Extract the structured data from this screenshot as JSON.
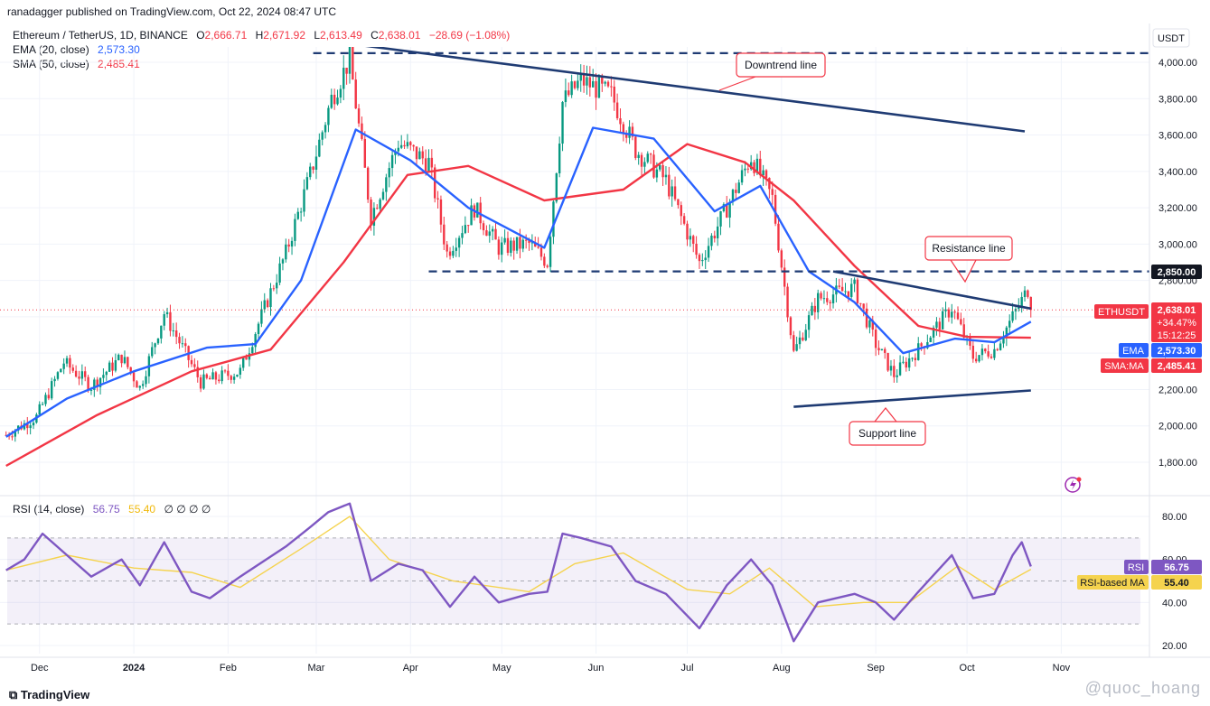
{
  "header": {
    "published": "ranadagger published on TradingView.com, Oct 22, 2024 08:47 UTC",
    "symbol": "Ethereum / TetherUS, 1D, BINANCE",
    "ohlc": {
      "o": "2,666.71",
      "h": "2,671.92",
      "l": "2,613.49",
      "c": "2,638.01",
      "chg": "−28.69 (−1.08%)"
    },
    "ema_label": "EMA (20, close)",
    "ema_value": "2,573.30",
    "sma_label": "SMA (50, close)",
    "sma_value": "2,485.41",
    "currency": "USDT"
  },
  "price_panel": {
    "labels": {
      "last_symbol": "ETHUSDT",
      "last_price": "2,638.01",
      "last_change": "+34.47%",
      "countdown": "15:12:25",
      "ema_tag": "EMA",
      "ema_price": "2,573.30",
      "sma_tag": "SMA:MA",
      "sma_price": "2,485.41",
      "level_2850": "2,850.00"
    },
    "annotations": {
      "downtrend": "Downtrend line",
      "resistance": "Resistance line",
      "support": "Support line"
    }
  },
  "rsi_panel": {
    "label": "RSI (14, close)",
    "rsi_value": "56.75",
    "ma_value": "55.40",
    "extras": "∅ ∅ ∅ ∅",
    "rsi_tag": "RSI",
    "ma_tag": "RSI-based MA"
  },
  "footer": {
    "brand": "TradingView",
    "watermark": "@quoc_hoang"
  },
  "colors": {
    "up": "#089981",
    "down": "#f23645",
    "ema": "#2962ff",
    "sma": "#f23645",
    "trend": "#1f3b73",
    "rsi": "#7e57c2",
    "rsi_ma": "#f5d34e"
  },
  "chart_data": [
    {
      "type": "candlestick",
      "title": "Ethereum / TetherUS, 1D, BINANCE",
      "ylabel": "USDT",
      "ylim": [
        1650,
        4100
      ],
      "y_ticks": [
        1800,
        2000,
        2200,
        2400,
        2600,
        2800,
        3000,
        3200,
        3400,
        3600,
        3800,
        4000
      ],
      "y_tick_labels": [
        "1,800.00",
        "2,000.00",
        "2,200.00",
        "2,400.00",
        "2,600.00",
        "2,800.00",
        "3,000.00",
        "3,200.00",
        "3,400.00",
        "3,600.00",
        "3,800.00",
        "4,000.00"
      ],
      "x_ticks": [
        "Dec",
        "2024",
        "Feb",
        "Mar",
        "Apr",
        "May",
        "Jun",
        "Jul",
        "Aug",
        "Sep",
        "Oct",
        "Nov"
      ],
      "x_tick_dates": [
        "2023-12-01",
        "2024-01-01",
        "2024-02-01",
        "2024-03-01",
        "2024-04-01",
        "2024-05-01",
        "2024-06-01",
        "2024-07-01",
        "2024-08-01",
        "2024-09-01",
        "2024-10-01",
        "2024-11-01"
      ],
      "x_range": [
        "2023-11-18",
        "2024-11-30"
      ],
      "series": [
        {
          "name": "ETHUSDT",
          "close_points": [
            [
              "2023-11-20",
              1950
            ],
            [
              "2023-11-30",
              2050
            ],
            [
              "2023-12-09",
              2350
            ],
            [
              "2023-12-18",
              2220
            ],
            [
              "2023-12-28",
              2380
            ],
            [
              "2024-01-03",
              2210
            ],
            [
              "2024-01-11",
              2620
            ],
            [
              "2024-01-23",
              2240
            ],
            [
              "2024-02-05",
              2300
            ],
            [
              "2024-02-13",
              2650
            ],
            [
              "2024-02-20",
              2950
            ],
            [
              "2024-02-28",
              3380
            ],
            [
              "2024-03-06",
              3800
            ],
            [
              "2024-03-12",
              4020
            ],
            [
              "2024-03-19",
              3150
            ],
            [
              "2024-03-28",
              3560
            ],
            [
              "2024-04-07",
              3450
            ],
            [
              "2024-04-13",
              2950
            ],
            [
              "2024-04-22",
              3200
            ],
            [
              "2024-04-30",
              2980
            ],
            [
              "2024-05-10",
              3000
            ],
            [
              "2024-05-16",
              2900
            ],
            [
              "2024-05-21",
              3780
            ],
            [
              "2024-05-27",
              3900
            ],
            [
              "2024-06-06",
              3820
            ],
            [
              "2024-06-14",
              3520
            ],
            [
              "2024-06-24",
              3350
            ],
            [
              "2024-07-05",
              2900
            ],
            [
              "2024-07-14",
              3200
            ],
            [
              "2024-07-22",
              3480
            ],
            [
              "2024-07-29",
              3250
            ],
            [
              "2024-08-05",
              2400
            ],
            [
              "2024-08-13",
              2700
            ],
            [
              "2024-08-25",
              2760
            ],
            [
              "2024-09-01",
              2450
            ],
            [
              "2024-09-07",
              2280
            ],
            [
              "2024-09-15",
              2420
            ],
            [
              "2024-09-26",
              2650
            ],
            [
              "2024-10-03",
              2380
            ],
            [
              "2024-10-10",
              2420
            ],
            [
              "2024-10-16",
              2600
            ],
            [
              "2024-10-21",
              2750
            ],
            [
              "2024-10-22",
              2638
            ]
          ]
        },
        {
          "name": "EMA (20, close)",
          "points": [
            [
              "2023-11-20",
              1940
            ],
            [
              "2023-12-10",
              2150
            ],
            [
              "2024-01-01",
              2300
            ],
            [
              "2024-01-25",
              2430
            ],
            [
              "2024-02-10",
              2450
            ],
            [
              "2024-02-25",
              2800
            ],
            [
              "2024-03-14",
              3630
            ],
            [
              "2024-04-01",
              3460
            ],
            [
              "2024-04-20",
              3200
            ],
            [
              "2024-05-15",
              2980
            ],
            [
              "2024-05-31",
              3640
            ],
            [
              "2024-06-20",
              3580
            ],
            [
              "2024-07-10",
              3180
            ],
            [
              "2024-07-25",
              3320
            ],
            [
              "2024-08-10",
              2850
            ],
            [
              "2024-08-25",
              2680
            ],
            [
              "2024-09-10",
              2400
            ],
            [
              "2024-09-27",
              2480
            ],
            [
              "2024-10-10",
              2460
            ],
            [
              "2024-10-22",
              2573
            ]
          ]
        },
        {
          "name": "SMA (50, close)",
          "points": [
            [
              "2023-11-20",
              1780
            ],
            [
              "2023-12-20",
              2060
            ],
            [
              "2024-01-20",
              2300
            ],
            [
              "2024-02-15",
              2420
            ],
            [
              "2024-03-10",
              2900
            ],
            [
              "2024-03-31",
              3380
            ],
            [
              "2024-04-20",
              3430
            ],
            [
              "2024-05-15",
              3240
            ],
            [
              "2024-06-10",
              3300
            ],
            [
              "2024-07-01",
              3550
            ],
            [
              "2024-07-20",
              3450
            ],
            [
              "2024-08-05",
              3240
            ],
            [
              "2024-08-25",
              2880
            ],
            [
              "2024-09-15",
              2550
            ],
            [
              "2024-10-01",
              2490
            ],
            [
              "2024-10-22",
              2485
            ]
          ]
        },
        {
          "name": "Downtrend line",
          "points": [
            [
              "2024-03-13",
              4100
            ],
            [
              "2024-10-20",
              3620
            ]
          ]
        },
        {
          "name": "Resistance line",
          "points": [
            [
              "2024-08-18",
              2850
            ],
            [
              "2024-10-22",
              2645
            ]
          ]
        },
        {
          "name": "Support line",
          "points": [
            [
              "2024-08-05",
              2105
            ],
            [
              "2024-10-22",
              2195
            ]
          ]
        },
        {
          "name": "4,050 level",
          "points": [
            [
              "2024-02-29",
              4050
            ],
            [
              "2024-11-30",
              4050
            ]
          ]
        },
        {
          "name": "2,850.00",
          "points": [
            [
              "2024-04-07",
              2850
            ],
            [
              "2024-11-30",
              2850
            ]
          ]
        }
      ]
    },
    {
      "type": "line",
      "title": "RSI (14, close)",
      "ylim": [
        15,
        90
      ],
      "y_ticks": [
        20,
        40,
        60,
        80
      ],
      "y_tick_labels": [
        "20.00",
        "40.00",
        "60.00",
        "80.00"
      ],
      "bands": [
        30,
        70
      ],
      "series": [
        {
          "name": "RSI",
          "points": [
            [
              "2023-11-20",
              55
            ],
            [
              "2023-11-26",
              60
            ],
            [
              "2023-12-02",
              72
            ],
            [
              "2023-12-10",
              62
            ],
            [
              "2023-12-18",
              52
            ],
            [
              "2023-12-28",
              60
            ],
            [
              "2024-01-03",
              48
            ],
            [
              "2024-01-11",
              68
            ],
            [
              "2024-01-20",
              45
            ],
            [
              "2024-01-26",
              42
            ],
            [
              "2024-02-05",
              52
            ],
            [
              "2024-02-20",
              66
            ],
            [
              "2024-02-28",
              75
            ],
            [
              "2024-03-05",
              82
            ],
            [
              "2024-03-12",
              86
            ],
            [
              "2024-03-19",
              50
            ],
            [
              "2024-03-28",
              58
            ],
            [
              "2024-04-05",
              55
            ],
            [
              "2024-04-14",
              38
            ],
            [
              "2024-04-22",
              52
            ],
            [
              "2024-04-30",
              40
            ],
            [
              "2024-05-10",
              44
            ],
            [
              "2024-05-16",
              45
            ],
            [
              "2024-05-21",
              72
            ],
            [
              "2024-05-27",
              70
            ],
            [
              "2024-06-06",
              66
            ],
            [
              "2024-06-14",
              50
            ],
            [
              "2024-06-24",
              44
            ],
            [
              "2024-07-05",
              28
            ],
            [
              "2024-07-14",
              48
            ],
            [
              "2024-07-22",
              60
            ],
            [
              "2024-07-29",
              48
            ],
            [
              "2024-08-05",
              22
            ],
            [
              "2024-08-13",
              40
            ],
            [
              "2024-08-25",
              44
            ],
            [
              "2024-09-01",
              40
            ],
            [
              "2024-09-07",
              32
            ],
            [
              "2024-09-15",
              45
            ],
            [
              "2024-09-26",
              62
            ],
            [
              "2024-10-03",
              42
            ],
            [
              "2024-10-10",
              44
            ],
            [
              "2024-10-16",
              62
            ],
            [
              "2024-10-19",
              68
            ],
            [
              "2024-10-22",
              56.75
            ]
          ]
        },
        {
          "name": "RSI-based MA",
          "points": [
            [
              "2023-11-20",
              55
            ],
            [
              "2023-12-10",
              62
            ],
            [
              "2024-01-01",
              56
            ],
            [
              "2024-01-20",
              54
            ],
            [
              "2024-02-05",
              47
            ],
            [
              "2024-02-25",
              65
            ],
            [
              "2024-03-12",
              80
            ],
            [
              "2024-03-25",
              60
            ],
            [
              "2024-04-15",
              50
            ],
            [
              "2024-05-10",
              45
            ],
            [
              "2024-05-25",
              58
            ],
            [
              "2024-06-10",
              63
            ],
            [
              "2024-07-01",
              46
            ],
            [
              "2024-07-15",
              44
            ],
            [
              "2024-07-28",
              56
            ],
            [
              "2024-08-12",
              38
            ],
            [
              "2024-08-28",
              40
            ],
            [
              "2024-09-12",
              40
            ],
            [
              "2024-09-28",
              57
            ],
            [
              "2024-10-10",
              46
            ],
            [
              "2024-10-22",
              55.4
            ]
          ]
        }
      ]
    }
  ]
}
